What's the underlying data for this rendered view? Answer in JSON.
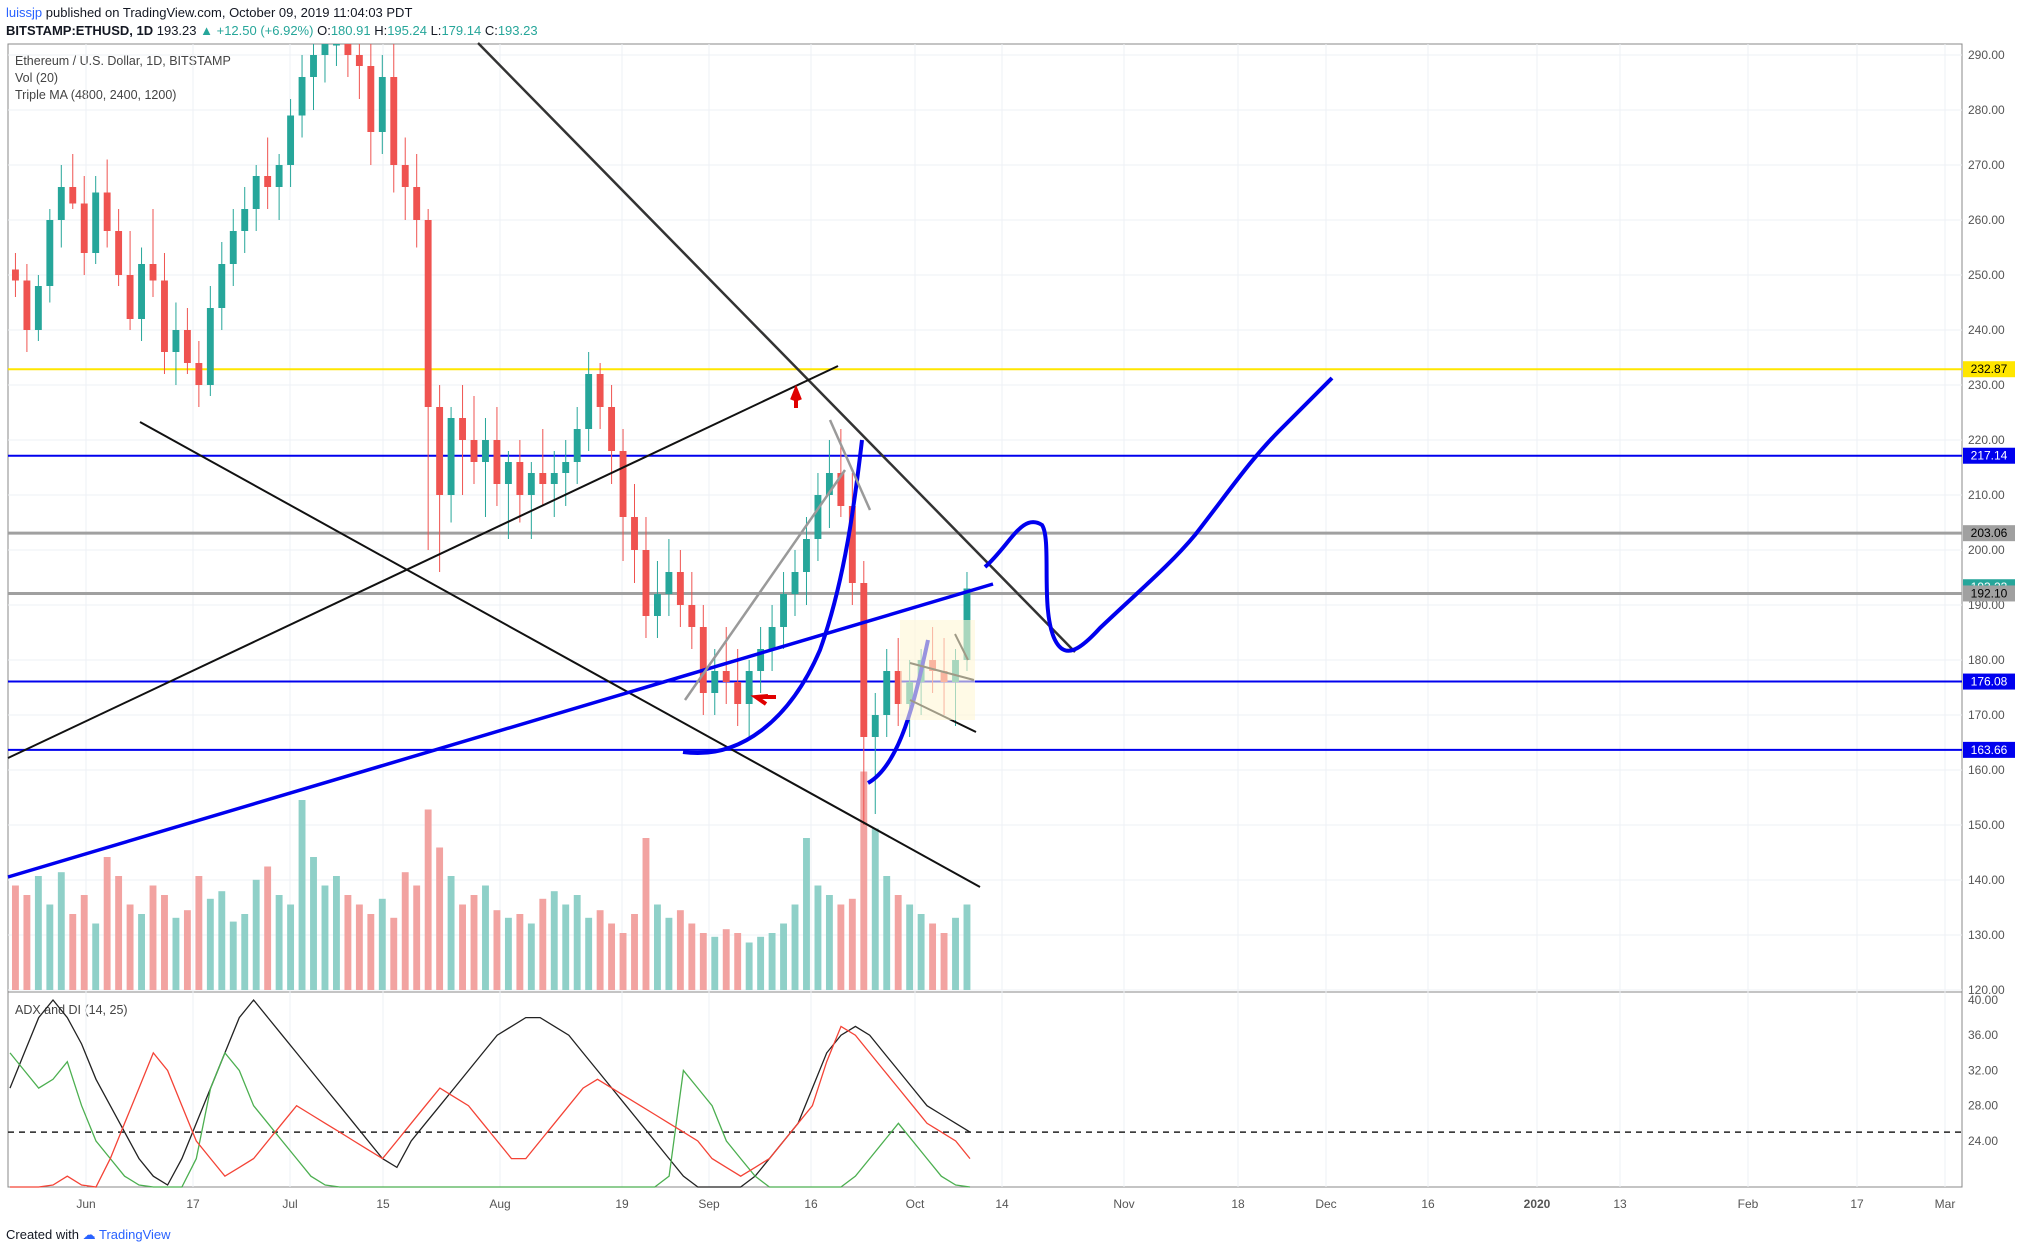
{
  "header": {
    "user": "luissjp",
    "published": "published on TradingView.com, October 09, 2019 11:04:03 PDT",
    "symbol": "BITSTAMP:ETHUSD, 1D",
    "last": "193.23",
    "change": "▲ +12.50 (+6.92%)",
    "ohlc": {
      "o": "180.91",
      "h": "195.24",
      "l": "179.14",
      "c": "193.23"
    }
  },
  "legend": {
    "title": "Ethereum / U.S. Dollar, 1D, BITSTAMP",
    "vol": "Vol (20)",
    "ma": "Triple MA (4800, 2400, 1200)"
  },
  "adx_legend": "ADX and DI (14, 25)",
  "footer": {
    "created": "Created with",
    "brand": "TradingView"
  },
  "colors": {
    "up": "#26a69a",
    "down": "#ef5350",
    "vol_up": "#8fd0c8",
    "vol_down": "#f2a3a1",
    "yellow": "#ffe600",
    "blue": "#0000ee",
    "gray": "#a0a0a0",
    "black": "#222222",
    "adx": "#222222",
    "di_plus": "#4caf50",
    "di_minus": "#f44336"
  },
  "chart_data": {
    "type": "candlestick",
    "price_axis": {
      "min": 120,
      "max": 290,
      "ticks": [
        290,
        280,
        270,
        260,
        250,
        240,
        230,
        220,
        210,
        200,
        190,
        180,
        170,
        160,
        150,
        140,
        130,
        120
      ]
    },
    "price_labels": [
      {
        "value": 232.87,
        "text": "232.87",
        "bg": "#ffe600",
        "fg": "#000000"
      },
      {
        "value": 217.14,
        "text": "217.14",
        "bg": "#0000ee",
        "fg": "#ffffff"
      },
      {
        "value": 203.06,
        "text": "203.06",
        "bg": "#a0a0a0",
        "fg": "#000000"
      },
      {
        "value": 193.23,
        "text": "193.23",
        "bg": "#26a69a",
        "fg": "#ffffff"
      },
      {
        "value": 192.1,
        "text": "192.10",
        "bg": "#a0a0a0",
        "fg": "#000000"
      },
      {
        "value": 176.08,
        "text": "176.08",
        "bg": "#0000ee",
        "fg": "#ffffff"
      },
      {
        "value": 163.66,
        "text": "163.66",
        "bg": "#0000ee",
        "fg": "#ffffff"
      }
    ],
    "hlines": [
      {
        "value": 232.87,
        "color": "#ffe600"
      },
      {
        "value": 217.14,
        "color": "#0000ee"
      },
      {
        "value": 203.06,
        "color": "#a0a0a0"
      },
      {
        "value": 192.1,
        "color": "#a0a0a0"
      },
      {
        "value": 176.08,
        "color": "#0000ee"
      },
      {
        "value": 163.66,
        "color": "#0000ee"
      }
    ],
    "adx_axis": {
      "min": 20,
      "max": 40,
      "ticks": [
        40,
        36,
        32,
        28,
        24
      ],
      "ref_level": 25
    },
    "time_axis": [
      "Jun",
      "17",
      "Jul",
      "15",
      "Aug",
      "19",
      "Sep",
      "16",
      "Oct",
      "14",
      "Nov",
      "18",
      "Dec",
      "16",
      "2020",
      "13",
      "Feb",
      "17",
      "Mar"
    ],
    "candles": [
      [
        251,
        254,
        246,
        249
      ],
      [
        249,
        252,
        236,
        240
      ],
      [
        240,
        250,
        238,
        248
      ],
      [
        248,
        262,
        245,
        260
      ],
      [
        260,
        270,
        255,
        266
      ],
      [
        266,
        272,
        262,
        263
      ],
      [
        263,
        268,
        250,
        254
      ],
      [
        254,
        268,
        252,
        265
      ],
      [
        265,
        271,
        255,
        258
      ],
      [
        258,
        262,
        248,
        250
      ],
      [
        250,
        258,
        240,
        242
      ],
      [
        242,
        255,
        238,
        252
      ],
      [
        252,
        262,
        246,
        249
      ],
      [
        249,
        254,
        232,
        236
      ],
      [
        236,
        245,
        230,
        240
      ],
      [
        240,
        244,
        232,
        234
      ],
      [
        234,
        238,
        226,
        230
      ],
      [
        230,
        248,
        228,
        244
      ],
      [
        244,
        256,
        240,
        252
      ],
      [
        252,
        262,
        248,
        258
      ],
      [
        258,
        266,
        254,
        262
      ],
      [
        262,
        270,
        258,
        268
      ],
      [
        268,
        275,
        262,
        266
      ],
      [
        266,
        272,
        260,
        270
      ],
      [
        270,
        282,
        266,
        279
      ],
      [
        279,
        290,
        275,
        286
      ],
      [
        286,
        292,
        280,
        290
      ],
      [
        290,
        296,
        285,
        293
      ],
      [
        293,
        298,
        288,
        295
      ],
      [
        295,
        299,
        286,
        290
      ],
      [
        290,
        296,
        282,
        288
      ],
      [
        288,
        294,
        270,
        276
      ],
      [
        276,
        290,
        272,
        286
      ],
      [
        286,
        292,
        265,
        270
      ],
      [
        270,
        275,
        260,
        266
      ],
      [
        266,
        272,
        255,
        260
      ],
      [
        260,
        262,
        200,
        226
      ],
      [
        226,
        230,
        196,
        210
      ],
      [
        210,
        226,
        205,
        224
      ],
      [
        224,
        230,
        210,
        220
      ],
      [
        220,
        228,
        212,
        216
      ],
      [
        216,
        224,
        206,
        220
      ],
      [
        220,
        226,
        208,
        212
      ],
      [
        212,
        218,
        202,
        216
      ],
      [
        216,
        220,
        205,
        210
      ],
      [
        210,
        216,
        202,
        214
      ],
      [
        214,
        222,
        208,
        212
      ],
      [
        212,
        218,
        206,
        214
      ],
      [
        214,
        220,
        208,
        216
      ],
      [
        216,
        226,
        212,
        222
      ],
      [
        222,
        236,
        218,
        232
      ],
      [
        232,
        234,
        222,
        226
      ],
      [
        226,
        230,
        212,
        218
      ],
      [
        218,
        222,
        198,
        206
      ],
      [
        206,
        212,
        194,
        200
      ],
      [
        200,
        206,
        184,
        188
      ],
      [
        188,
        198,
        184,
        192
      ],
      [
        192,
        202,
        188,
        196
      ],
      [
        196,
        200,
        186,
        190
      ],
      [
        190,
        196,
        182,
        186
      ],
      [
        186,
        190,
        170,
        174
      ],
      [
        174,
        182,
        170,
        178
      ],
      [
        178,
        186,
        172,
        176
      ],
      [
        176,
        182,
        168,
        172
      ],
      [
        172,
        180,
        166,
        178
      ],
      [
        178,
        186,
        174,
        182
      ],
      [
        182,
        190,
        178,
        186
      ],
      [
        186,
        196,
        182,
        192
      ],
      [
        192,
        200,
        188,
        196
      ],
      [
        196,
        206,
        190,
        202
      ],
      [
        202,
        214,
        198,
        210
      ],
      [
        210,
        220,
        204,
        214
      ],
      [
        214,
        222,
        206,
        208
      ],
      [
        208,
        214,
        190,
        194
      ],
      [
        194,
        198,
        150,
        166
      ],
      [
        166,
        174,
        152,
        170
      ],
      [
        170,
        182,
        166,
        178
      ],
      [
        178,
        184,
        168,
        172
      ],
      [
        172,
        180,
        166,
        176
      ],
      [
        176,
        182,
        170,
        180
      ],
      [
        180,
        186,
        174,
        178
      ],
      [
        178,
        184,
        170,
        176
      ],
      [
        176,
        182,
        168,
        180
      ],
      [
        180,
        196,
        178,
        193
      ]
    ],
    "volume": [
      0.55,
      0.5,
      0.6,
      0.45,
      0.62,
      0.4,
      0.5,
      0.35,
      0.7,
      0.6,
      0.45,
      0.4,
      0.55,
      0.5,
      0.38,
      0.42,
      0.6,
      0.48,
      0.52,
      0.36,
      0.4,
      0.58,
      0.65,
      0.5,
      0.45,
      1.0,
      0.7,
      0.55,
      0.6,
      0.5,
      0.45,
      0.4,
      0.48,
      0.38,
      0.62,
      0.55,
      0.95,
      0.75,
      0.6,
      0.45,
      0.5,
      0.55,
      0.42,
      0.38,
      0.4,
      0.35,
      0.48,
      0.52,
      0.45,
      0.5,
      0.38,
      0.42,
      0.35,
      0.3,
      0.4,
      0.8,
      0.45,
      0.38,
      0.42,
      0.35,
      0.3,
      0.28,
      0.32,
      0.3,
      0.25,
      0.28,
      0.3,
      0.35,
      0.45,
      0.8,
      0.55,
      0.5,
      0.45,
      0.48,
      1.15,
      0.85,
      0.6,
      0.5,
      0.45,
      0.4,
      0.35,
      0.3,
      0.38,
      0.45
    ],
    "adx": [
      30,
      34,
      38,
      40,
      38,
      35,
      31,
      28,
      25,
      22,
      20,
      19,
      22,
      26,
      30,
      34,
      38,
      40,
      38,
      36,
      34,
      32,
      30,
      28,
      26,
      24,
      22,
      21,
      24,
      26,
      28,
      30,
      32,
      34,
      36,
      37,
      38,
      38,
      37,
      36,
      34,
      32,
      30,
      28,
      26,
      24,
      22,
      20,
      18,
      17,
      16,
      18,
      20,
      22,
      24,
      26,
      30,
      34,
      36,
      37,
      36,
      34,
      32,
      30,
      28,
      27,
      26,
      25
    ],
    "di_plus": [
      34,
      32,
      30,
      31,
      33,
      28,
      24,
      22,
      20,
      19,
      18,
      17,
      18,
      22,
      30,
      34,
      32,
      28,
      26,
      24,
      22,
      20,
      19,
      18,
      17,
      16,
      15,
      14,
      15,
      16,
      18,
      17,
      16,
      15,
      14,
      13,
      12,
      13,
      14,
      15,
      16,
      17,
      18,
      17,
      16,
      15,
      20,
      32,
      30,
      28,
      24,
      22,
      20,
      18,
      16,
      15,
      14,
      16,
      18,
      20,
      22,
      24,
      26,
      24,
      22,
      20,
      19,
      18
    ],
    "di_minus": [
      18,
      17,
      18,
      19,
      20,
      19,
      18,
      22,
      26,
      30,
      34,
      32,
      28,
      24,
      22,
      20,
      21,
      22,
      24,
      26,
      28,
      27,
      26,
      25,
      24,
      23,
      22,
      24,
      26,
      28,
      30,
      29,
      28,
      26,
      24,
      22,
      22,
      24,
      26,
      28,
      30,
      31,
      30,
      29,
      28,
      27,
      26,
      25,
      24,
      22,
      21,
      20,
      21,
      22,
      24,
      26,
      28,
      33,
      37,
      36,
      34,
      32,
      30,
      28,
      26,
      25,
      24,
      22
    ]
  }
}
